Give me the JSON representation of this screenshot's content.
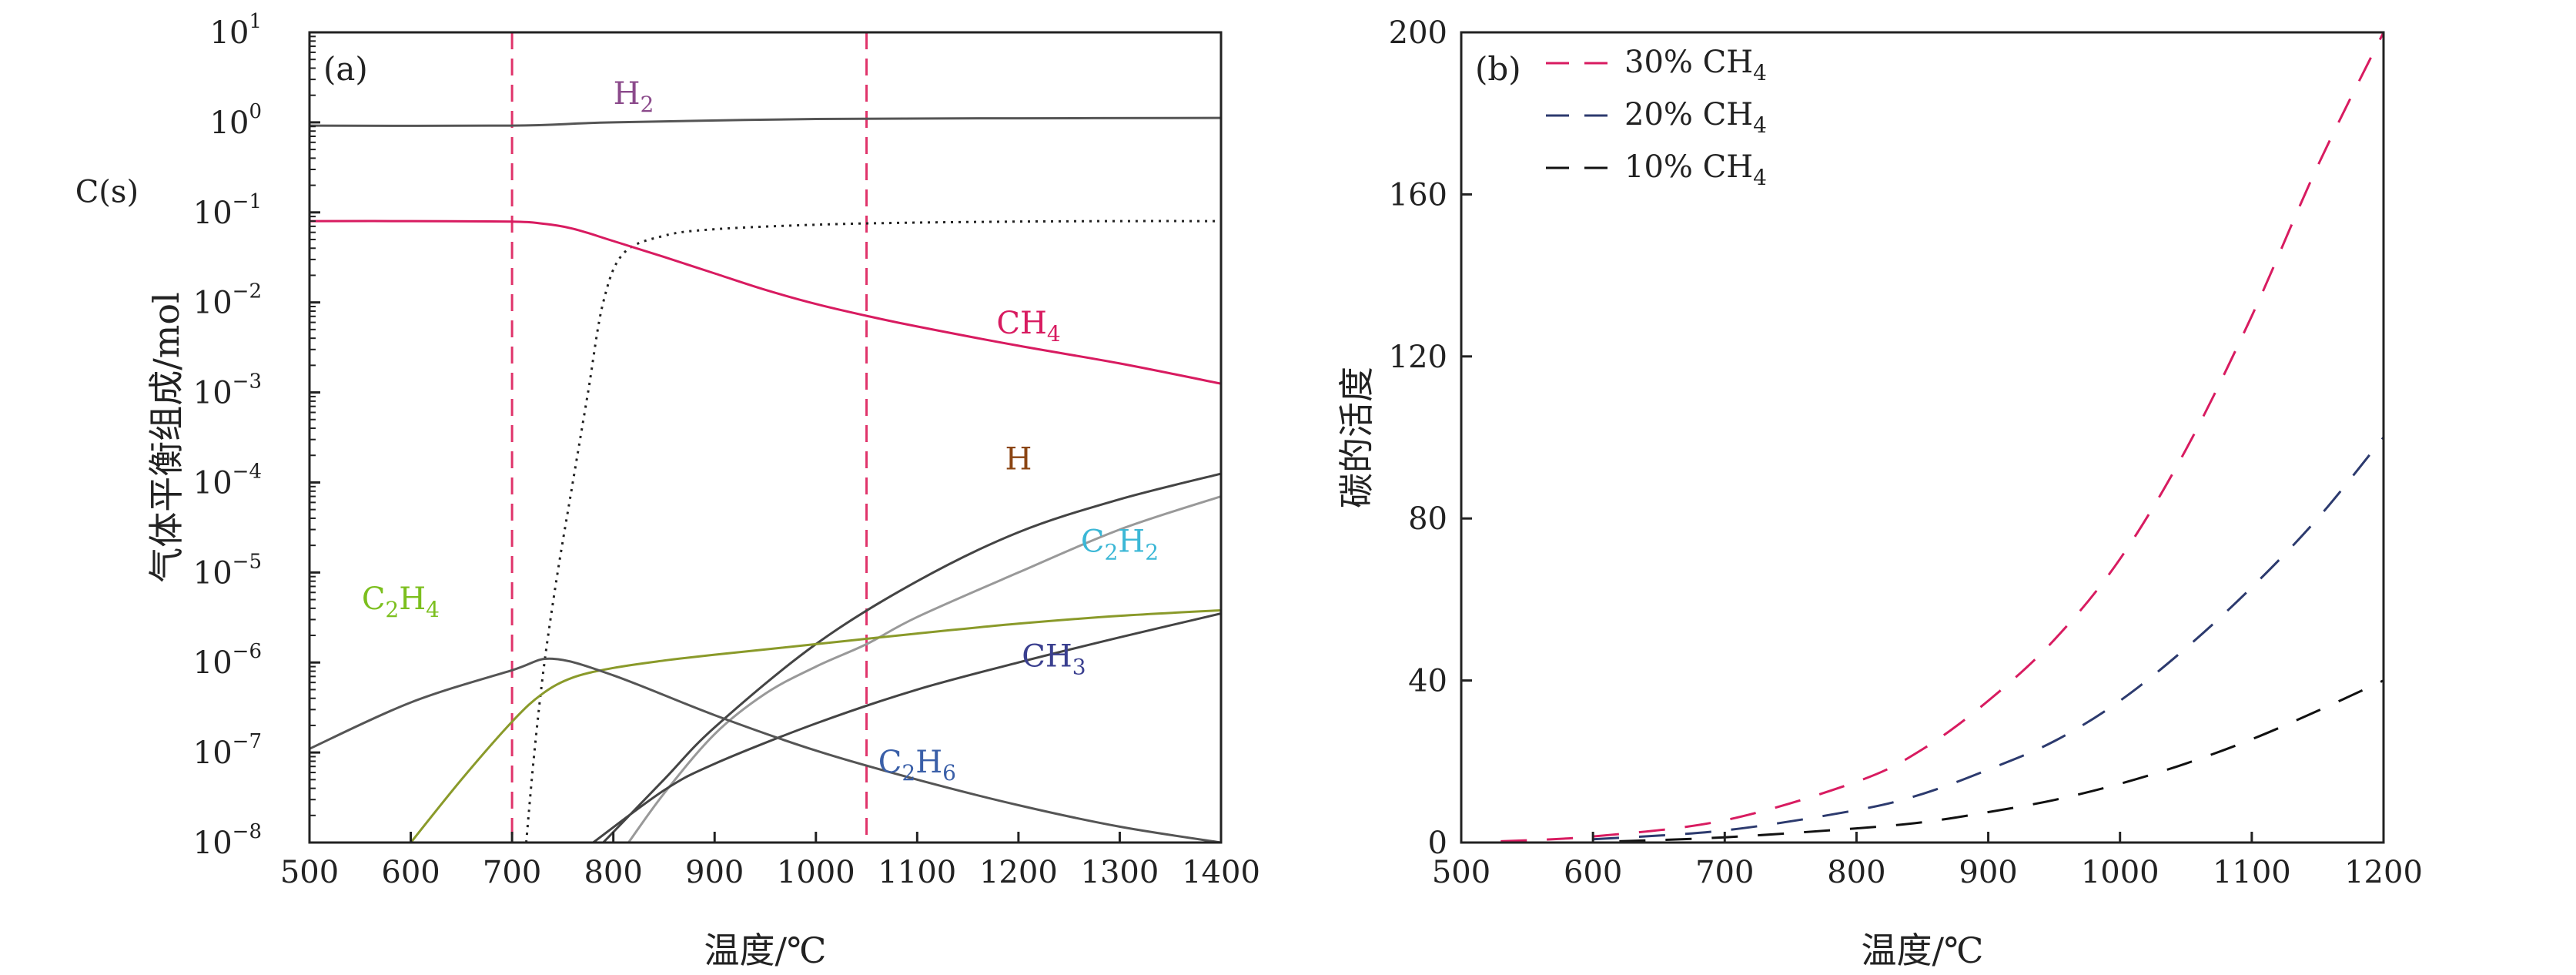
{
  "chart_data": [
    {
      "type": "line",
      "panel_label": "(a)",
      "xlabel": "温度/℃",
      "ylabel": "气体平衡组成/mol",
      "xlim": [
        500,
        1400
      ],
      "ylim": [
        1e-08,
        10
      ],
      "yscale": "log",
      "xticks": [
        "500",
        "600",
        "700",
        "800",
        "900",
        "1000",
        "1100",
        "1200",
        "1300",
        "1400"
      ],
      "yticks": [
        {
          "base": "10",
          "exp": "1"
        },
        {
          "base": "10",
          "exp": "0"
        },
        {
          "base": "10",
          "exp": "−1"
        },
        {
          "base": "10",
          "exp": "−2"
        },
        {
          "base": "10",
          "exp": "−3"
        },
        {
          "base": "10",
          "exp": "−4"
        },
        {
          "base": "10",
          "exp": "−5"
        },
        {
          "base": "10",
          "exp": "−6"
        },
        {
          "base": "10",
          "exp": "−7"
        },
        {
          "base": "10",
          "exp": "−8"
        }
      ],
      "vlines": [
        700,
        1050
      ],
      "vline_color": "#e0336a",
      "series": [
        {
          "name": "H₂",
          "main": "H",
          "sub": "2",
          "label_color": "#8b4a8b",
          "color": "#555555",
          "dash": "",
          "x": [
            500,
            700,
            800,
            1000,
            1200,
            1400
          ],
          "y": [
            0.92,
            0.92,
            1.0,
            1.09,
            1.11,
            1.12
          ]
        },
        {
          "name": "C(s)",
          "main": "C(s)",
          "sub": "",
          "label_color": "#222222",
          "color": "#222222",
          "dash": "3 7",
          "x": [
            714,
            722,
            732,
            745,
            760,
            775,
            790,
            810,
            850,
            900,
            1000,
            1100,
            1200,
            1300,
            1400
          ],
          "y": [
            1e-08,
            1e-07,
            1e-06,
            1e-05,
            0.0001,
            0.001,
            0.01,
            0.035,
            0.055,
            0.065,
            0.073,
            0.077,
            0.079,
            0.08,
            0.08
          ]
        },
        {
          "name": "CH₄",
          "main": "CH",
          "sub": "4",
          "label_color": "#d81b60",
          "color": "#d81b60",
          "dash": "",
          "x": [
            500,
            600,
            700,
            730,
            760,
            800,
            850,
            900,
            950,
            1000,
            1050,
            1100,
            1200,
            1300,
            1400
          ],
          "y": [
            0.08,
            0.08,
            0.079,
            0.075,
            0.066,
            0.048,
            0.032,
            0.021,
            0.0138,
            0.0096,
            0.0071,
            0.0054,
            0.0033,
            0.0021,
            0.00125
          ]
        },
        {
          "name": "H",
          "main": "H",
          "sub": "",
          "label_color": "#8b4513",
          "color": "#444444",
          "dash": "",
          "x": [
            790,
            850,
            900,
            1000,
            1100,
            1200,
            1300,
            1400
          ],
          "y": [
            1e-08,
            5e-08,
            1.9e-07,
            1.6e-06,
            8e-06,
            2.8e-05,
            6.5e-05,
            0.000125
          ]
        },
        {
          "name": "C₂H₂",
          "main": "C",
          "sub": "2",
          "main2": "H",
          "sub2": "2",
          "label_color": "#3bb7d6",
          "color": "#999999",
          "dash": "",
          "x": [
            815,
            850,
            900,
            950,
            1000,
            1050,
            1100,
            1200,
            1300,
            1400
          ],
          "y": [
            1e-08,
            3.5e-08,
            1.6e-07,
            4.5e-07,
            9e-07,
            1.6e-06,
            3.2e-06,
            1e-05,
            3e-05,
            7e-05
          ]
        },
        {
          "name": "C₂H₄",
          "main": "C",
          "sub": "2",
          "main2": "H",
          "sub2": "4",
          "label_color": "#7cbf1e",
          "color": "#8a9a2a",
          "dash": "",
          "x": [
            600,
            650,
            700,
            730,
            760,
            800,
            850,
            900,
            1000,
            1100,
            1200,
            1300,
            1400
          ],
          "y": [
            1e-08,
            5e-08,
            2.2e-07,
            4.5e-07,
            6.8e-07,
            8.7e-07,
            1.05e-06,
            1.22e-06,
            1.6e-06,
            2.1e-06,
            2.7e-06,
            3.3e-06,
            3.8e-06
          ]
        },
        {
          "name": "CH₃",
          "main": "CH",
          "sub": "3",
          "label_color": "#3a3f8f",
          "color": "#444444",
          "dash": "",
          "x": [
            780,
            850,
            900,
            1000,
            1100,
            1200,
            1300,
            1400
          ],
          "y": [
            1e-08,
            3.8e-08,
            7.5e-08,
            2.1e-07,
            5e-07,
            1e-06,
            1.9e-06,
            3.5e-06
          ]
        },
        {
          "name": "C₂H₆",
          "main": "C",
          "sub": "2",
          "main2": "H",
          "sub2": "6",
          "label_color": "#3a5fa8",
          "color": "#555555",
          "dash": "",
          "x": [
            500,
            600,
            700,
            740,
            800,
            900,
            1000,
            1100,
            1200,
            1300,
            1400
          ],
          "y": [
            1.1e-07,
            3.6e-07,
            8.2e-07,
            1.1e-06,
            7.2e-07,
            2.6e-07,
            1.05e-07,
            5e-08,
            2.6e-08,
            1.5e-08,
            1e-08
          ]
        }
      ],
      "labels_at": {
        "H₂": [
          820,
          1.6
        ],
        "C(s)": [
          300,
          0.13
        ],
        "CH₄": [
          1210,
          0.0045
        ],
        "H": [
          1200,
          0.00014
        ],
        "C₂H₂": [
          1300,
          1.7e-05
        ],
        "C₂H₄": [
          590,
          3.9e-06
        ],
        "CH₃": [
          1235,
          9e-07
        ],
        "C₂H₆": [
          1100,
          6e-08
        ]
      }
    },
    {
      "type": "line",
      "panel_label": "(b)",
      "xlabel": "温度/℃",
      "ylabel": "碳的活度",
      "xlim": [
        500,
        1200
      ],
      "ylim": [
        0,
        200
      ],
      "xticks": [
        "500",
        "600",
        "700",
        "800",
        "900",
        "1000",
        "1100",
        "1200"
      ],
      "yticks": [
        "0",
        "40",
        "80",
        "120",
        "160",
        "200"
      ],
      "legend_position": "top-left",
      "series": [
        {
          "name": "30% CH₄",
          "legend_main": "30% CH",
          "legend_sub": "4",
          "color": "#d81b60",
          "x": [
            530,
            600,
            700,
            800,
            850,
            900,
            950,
            1000,
            1050,
            1100,
            1150,
            1200
          ],
          "y": [
            0.3,
            1.5,
            5.5,
            15,
            23,
            35,
            50,
            70,
            97,
            130,
            167,
            200
          ]
        },
        {
          "name": "20% CH₄",
          "legend_main": "20% CH",
          "legend_sub": "4",
          "color": "#2c3a6e",
          "x": [
            600,
            700,
            800,
            850,
            900,
            950,
            1000,
            1050,
            1100,
            1150,
            1200
          ],
          "y": [
            0.8,
            3,
            8,
            12,
            18,
            25,
            35,
            48,
            63,
            80,
            100
          ]
        },
        {
          "name": "10% CH₄",
          "legend_main": "10% CH",
          "legend_sub": "4",
          "color": "#111111",
          "x": [
            620,
            700,
            800,
            850,
            900,
            950,
            1000,
            1050,
            1100,
            1150,
            1200
          ],
          "y": [
            0.3,
            1.3,
            3.5,
            5,
            7.5,
            10.5,
            14.5,
            19.5,
            25.5,
            32.5,
            40
          ]
        }
      ]
    }
  ]
}
